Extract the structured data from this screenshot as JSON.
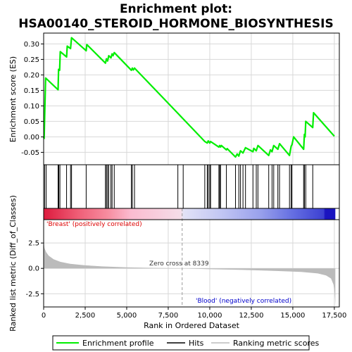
{
  "chart_data": {
    "type": "line",
    "title_lines": [
      "Enrichment plot:",
      "HSA00140_STEROID_HORMONE_BIOSYNTHESIS"
    ],
    "xlabel": "Rank in Ordered Dataset",
    "ylabel_top": "Enrichment score (ES)",
    "ylabel_bottom": "Ranked list metric (Diff_of_Classes)",
    "xlim": [
      0,
      17800
    ],
    "es_ylim": [
      -0.09,
      0.335
    ],
    "metric_ylim": [
      -3.8,
      4.8
    ],
    "x_ticks": [
      0,
      2500,
      5000,
      7500,
      10000,
      12500,
      15000,
      17500
    ],
    "x_tick_labels": [
      "0",
      "2,500",
      "5,000",
      "7,500",
      "10,000",
      "12,500",
      "15,000",
      "17,500"
    ],
    "es_ticks": [
      -0.05,
      0.0,
      0.05,
      0.1,
      0.15,
      0.2,
      0.25,
      0.3
    ],
    "es_tick_labels": [
      "-0.05",
      "0.00",
      "0.05",
      "0.10",
      "0.15",
      "0.20",
      "0.25",
      "0.30"
    ],
    "metric_ticks": [
      -2.5,
      0.0,
      2.5
    ],
    "metric_tick_labels": [
      "-2.5",
      "0.0",
      "2.5"
    ],
    "es_profile": [
      [
        0,
        0.0
      ],
      [
        30,
        -0.005
      ],
      [
        120,
        0.19
      ],
      [
        870,
        0.152
      ],
      [
        900,
        0.218
      ],
      [
        960,
        0.215
      ],
      [
        1000,
        0.275
      ],
      [
        1380,
        0.258
      ],
      [
        1420,
        0.293
      ],
      [
        1620,
        0.285
      ],
      [
        1680,
        0.32
      ],
      [
        2560,
        0.278
      ],
      [
        2600,
        0.298
      ],
      [
        3720,
        0.238
      ],
      [
        3780,
        0.252
      ],
      [
        3850,
        0.245
      ],
      [
        3920,
        0.262
      ],
      [
        4050,
        0.255
      ],
      [
        4120,
        0.268
      ],
      [
        4180,
        0.262
      ],
      [
        4250,
        0.272
      ],
      [
        5280,
        0.215
      ],
      [
        5340,
        0.222
      ],
      [
        5400,
        0.216
      ],
      [
        5470,
        0.222
      ],
      [
        8080,
        0.076
      ],
      [
        8400,
        0.058
      ],
      [
        9700,
        -0.015
      ],
      [
        9850,
        -0.02
      ],
      [
        9910,
        -0.013
      ],
      [
        10000,
        -0.02
      ],
      [
        10050,
        -0.015
      ],
      [
        10550,
        -0.033
      ],
      [
        10600,
        -0.028
      ],
      [
        10650,
        -0.033
      ],
      [
        10700,
        -0.028
      ],
      [
        11000,
        -0.042
      ],
      [
        11050,
        -0.038
      ],
      [
        11550,
        -0.065
      ],
      [
        11650,
        -0.055
      ],
      [
        11750,
        -0.062
      ],
      [
        11850,
        -0.045
      ],
      [
        12000,
        -0.052
      ],
      [
        12150,
        -0.035
      ],
      [
        12600,
        -0.048
      ],
      [
        12650,
        -0.037
      ],
      [
        12800,
        -0.045
      ],
      [
        12900,
        -0.028
      ],
      [
        13550,
        -0.06
      ],
      [
        13650,
        -0.042
      ],
      [
        13750,
        -0.048
      ],
      [
        13850,
        -0.028
      ],
      [
        14100,
        -0.04
      ],
      [
        14200,
        -0.022
      ],
      [
        14800,
        -0.06
      ],
      [
        14900,
        -0.03
      ],
      [
        14950,
        -0.025
      ],
      [
        15050,
        0.0
      ],
      [
        15650,
        -0.04
      ],
      [
        15700,
        0.008
      ],
      [
        15740,
        0.0
      ],
      [
        15780,
        0.05
      ],
      [
        16200,
        0.03
      ],
      [
        16250,
        0.078
      ],
      [
        17500,
        0.002
      ]
    ],
    "hits": [
      60,
      150,
      870,
      910,
      980,
      1380,
      1620,
      1680,
      2560,
      3720,
      3780,
      3850,
      3920,
      4050,
      4120,
      4250,
      5280,
      5340,
      5470,
      8080,
      8400,
      9700,
      9850,
      9910,
      10000,
      10050,
      10550,
      10600,
      10650,
      11000,
      11550,
      11750,
      11850,
      12000,
      12150,
      12600,
      12800,
      12900,
      13550,
      13750,
      13850,
      14100,
      14200,
      14800,
      14900,
      14950,
      15650,
      15700,
      15780,
      16200
    ],
    "metric_profile": [
      [
        0,
        2.6
      ],
      [
        50,
        2.0
      ],
      [
        150,
        1.6
      ],
      [
        300,
        1.25
      ],
      [
        600,
        0.9
      ],
      [
        1000,
        0.65
      ],
      [
        1600,
        0.45
      ],
      [
        2500,
        0.3
      ],
      [
        3500,
        0.2
      ],
      [
        5000,
        0.1
      ],
      [
        6500,
        0.05
      ],
      [
        8339,
        0.0
      ],
      [
        10000,
        -0.08
      ],
      [
        12000,
        -0.15
      ],
      [
        14000,
        -0.25
      ],
      [
        15500,
        -0.35
      ],
      [
        16500,
        -0.5
      ],
      [
        17000,
        -0.7
      ],
      [
        17300,
        -1.0
      ],
      [
        17450,
        -1.6
      ],
      [
        17520,
        -2.4
      ],
      [
        17560,
        -3.6
      ]
    ],
    "zero_cross": 8339,
    "zero_cross_label": "Zero cross at 8339",
    "pos_label": "'Breast' (positively correlated)",
    "neg_label": "'Blood' (negatively correlated)",
    "legend": [
      "Enrichment profile",
      "Hits",
      "Ranking metric scores"
    ],
    "colors": {
      "es_line": "#00ee00",
      "hits": "#000000",
      "metric_fill": "#bbbbbb",
      "pos_text": "#dd0000",
      "neg_text": "#0000cc",
      "grid": "#d8d8d8",
      "zero_line": "#9a9a9a"
    },
    "heat_stops": [
      [
        0.0,
        "#dd1b3e"
      ],
      [
        0.12,
        "#ef5f77"
      ],
      [
        0.22,
        "#f78da0"
      ],
      [
        0.3,
        "#fbbcd0"
      ],
      [
        0.47,
        "#f5dde8"
      ],
      [
        0.48,
        "#e2e2f6"
      ],
      [
        0.6,
        "#c4c8f4"
      ],
      [
        0.74,
        "#9aa2ec"
      ],
      [
        0.85,
        "#6670e2"
      ],
      [
        0.96,
        "#3c40d2"
      ],
      [
        0.965,
        "#1a14c0"
      ],
      [
        1.0,
        "#1a14c0"
      ]
    ]
  }
}
